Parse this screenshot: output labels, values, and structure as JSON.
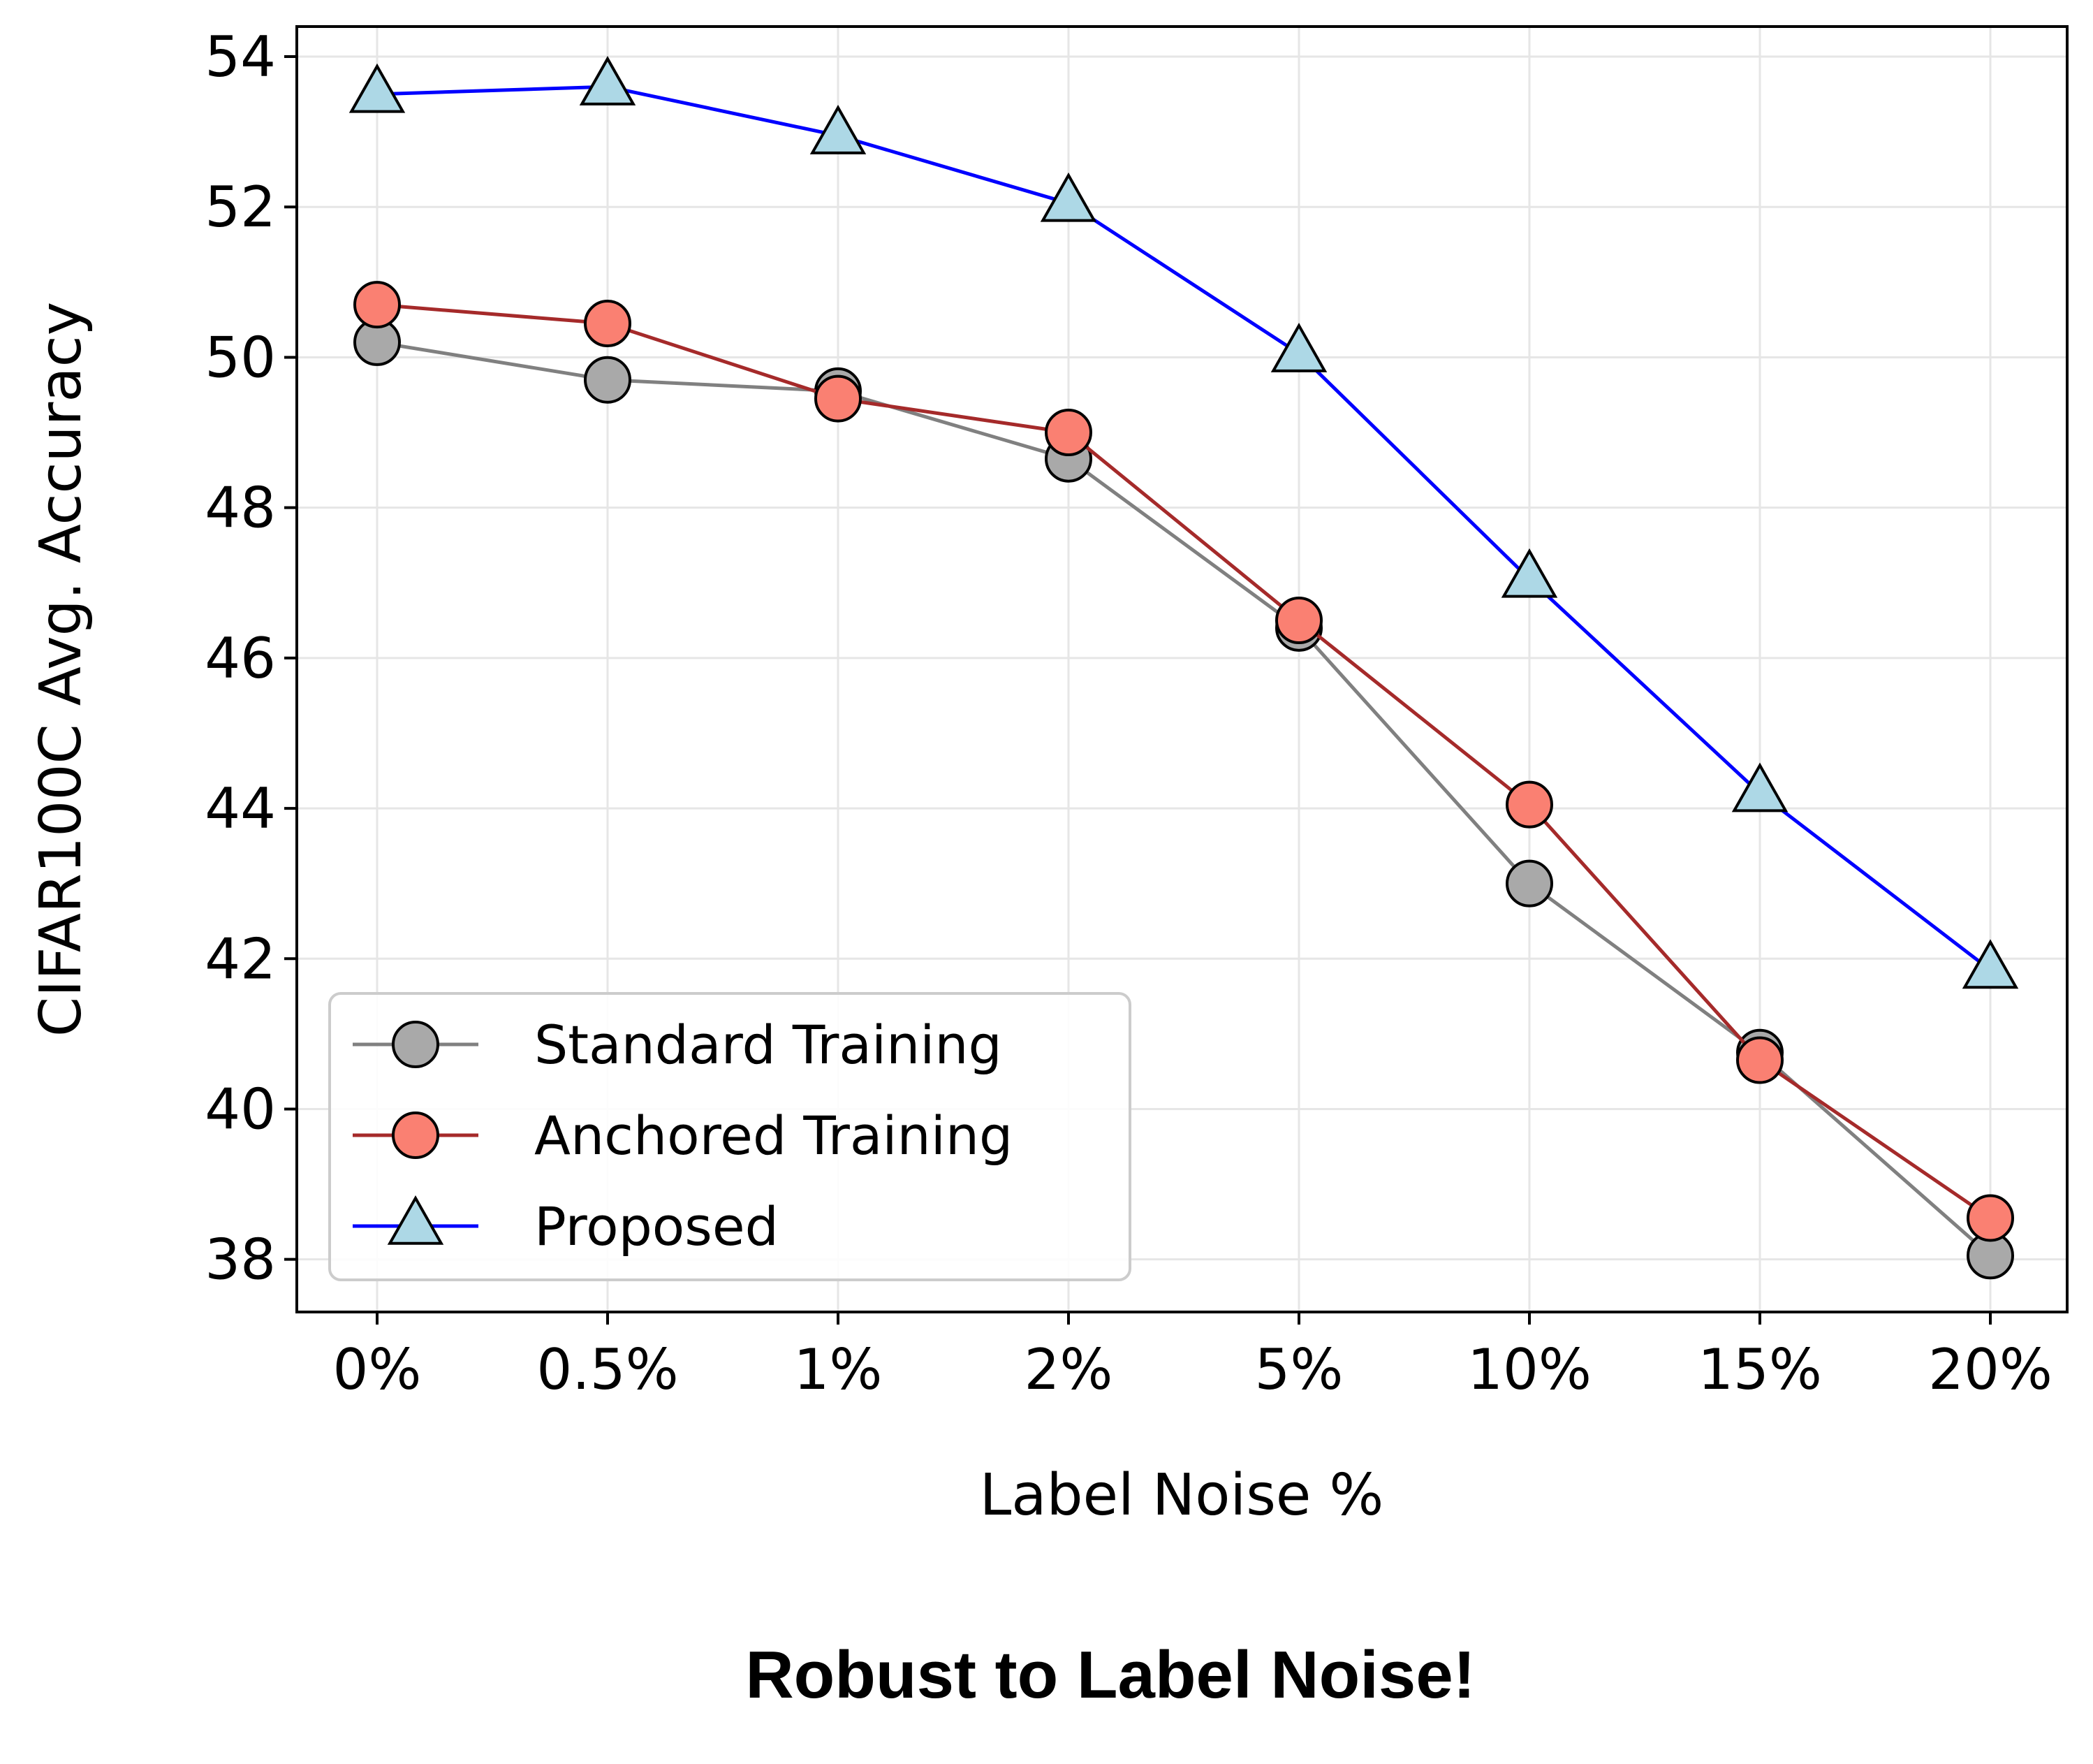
{
  "chart_data": {
    "type": "line",
    "categories": [
      "0%",
      "0.5%",
      "1%",
      "2%",
      "5%",
      "10%",
      "15%",
      "20%"
    ],
    "series": [
      {
        "name": "Standard Training",
        "values": [
          50.2,
          49.7,
          49.55,
          48.65,
          46.4,
          43.0,
          40.75,
          38.05
        ],
        "color": "#808080",
        "marker": "circle",
        "marker_fill": "#a9a9a9"
      },
      {
        "name": "Anchored Training",
        "values": [
          50.7,
          50.45,
          49.45,
          49.0,
          46.5,
          44.05,
          40.65,
          38.55
        ],
        "color": "#a52a2a",
        "marker": "circle",
        "marker_fill": "#fa8072"
      },
      {
        "name": "Proposed",
        "values": [
          53.5,
          53.6,
          52.95,
          52.05,
          50.05,
          47.05,
          44.2,
          41.85
        ],
        "color": "#0000ff",
        "marker": "triangle",
        "marker_fill": "#add8e6"
      }
    ],
    "xlabel": "Label Noise %",
    "ylabel": "CIFAR100C Avg. Accuracy",
    "ylim": [
      37.3,
      54.4
    ],
    "yticks": [
      "38",
      "40",
      "42",
      "44",
      "46",
      "48",
      "50",
      "52",
      "54"
    ],
    "grid": true,
    "legend_position": "lower-left",
    "caption": "Robust to Label Noise!"
  }
}
